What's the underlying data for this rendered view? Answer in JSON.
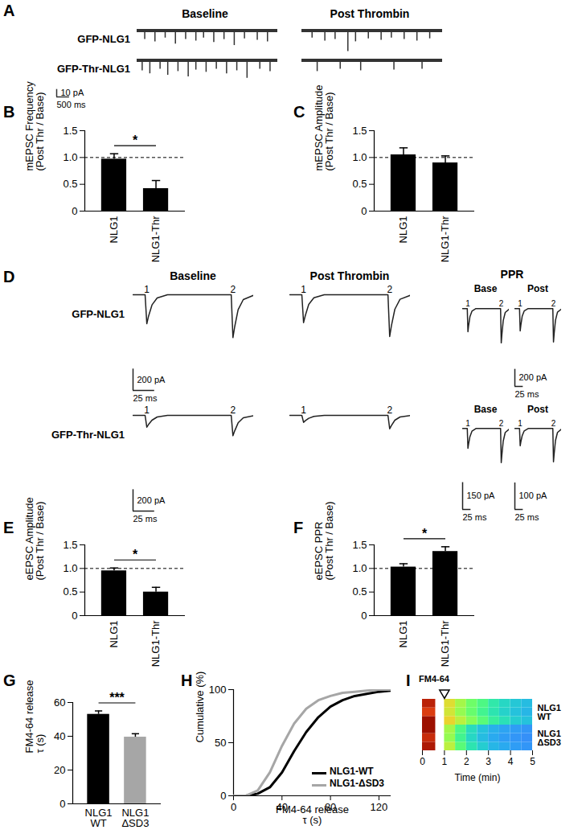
{
  "chart_data": [
    {
      "panel": "A",
      "type": "trace",
      "color": "#333333",
      "column_titles": [
        "Baseline",
        "Post Thrombin"
      ],
      "row_labels": [
        "GFP-NLG1",
        "GFP-Thr-NLG1"
      ],
      "xlim": [
        0,
        5500
      ],
      "ylim": [
        -35,
        8
      ],
      "traces": [
        [
          [
            [
              300,
              -12
            ],
            [
              700,
              -15
            ],
            [
              1100,
              -10
            ],
            [
              1500,
              -18
            ],
            [
              1900,
              -12
            ],
            [
              2300,
              -14
            ],
            [
              2600,
              -10
            ],
            [
              3000,
              -16
            ],
            [
              3400,
              -12
            ],
            [
              3800,
              -20
            ],
            [
              4200,
              -11
            ],
            [
              4700,
              -13
            ],
            [
              5100,
              -15
            ]
          ],
          [
            [
              400,
              -10
            ],
            [
              900,
              -14
            ],
            [
              1300,
              -12
            ],
            [
              1800,
              -28
            ],
            [
              2100,
              -15
            ],
            [
              2600,
              -11
            ],
            [
              3100,
              -13
            ],
            [
              3500,
              -10
            ],
            [
              4000,
              -12
            ],
            [
              4500,
              -14
            ],
            [
              5000,
              -11
            ]
          ]
        ],
        [
          [
            [
              200,
              -14
            ],
            [
              500,
              -18
            ],
            [
              900,
              -12
            ],
            [
              1200,
              -20
            ],
            [
              1600,
              -15
            ],
            [
              2000,
              -22
            ],
            [
              2300,
              -13
            ],
            [
              2700,
              -16
            ],
            [
              3100,
              -12
            ],
            [
              3500,
              -18
            ],
            [
              3900,
              -14
            ],
            [
              4300,
              -24
            ],
            [
              4800,
              -12
            ],
            [
              5200,
              -15
            ]
          ],
          [
            [
              600,
              -15
            ],
            [
              1500,
              -12
            ],
            [
              2300,
              -14
            ],
            [
              3600,
              -13
            ],
            [
              4700,
              -12
            ]
          ]
        ]
      ],
      "scale_bar": {
        "x": 500,
        "x_label": "500 ms",
        "y": 10,
        "y_label": "10 pA"
      }
    },
    {
      "panel": "B",
      "type": "bar",
      "categories": [
        "NLG1",
        "NLG1-Thr"
      ],
      "values": [
        0.97,
        0.42
      ],
      "errors": [
        0.1,
        0.15
      ],
      "color": "#000000",
      "ylabel": "mEPSC Frequency\n(Post Thr / Base)",
      "ylim": [
        0,
        1.5
      ],
      "yticks": [
        0,
        0.5,
        {
          "value": 1,
          "label": "1.0"
        },
        1.5
      ],
      "reference": 1,
      "significance": "*"
    },
    {
      "panel": "C",
      "type": "bar",
      "categories": [
        "NLG1",
        "NLG1-Thr"
      ],
      "values": [
        1.05,
        0.9
      ],
      "errors": [
        0.13,
        0.13
      ],
      "color": "#000000",
      "ylabel": "mEPSC Amplitude\n(Post Thr / Base)",
      "ylim": [
        0,
        1.5
      ],
      "yticks": [
        0,
        0.5,
        {
          "value": 1,
          "label": "1.0"
        },
        1.5
      ],
      "reference": 1
    },
    {
      "panel": "D",
      "type": "evoked_trace",
      "color": "#222222",
      "column_titles": [
        "Baseline",
        "Post Thrombin"
      ],
      "row_labels": [
        "GFP-NLG1",
        "GFP-Thr-NLG1"
      ],
      "xlim": [
        0,
        140
      ],
      "ylim": [
        -420,
        30
      ],
      "pulses": [
        {
          "label": "1",
          "t": 16
        },
        {
          "label": "2",
          "t": 116
        }
      ],
      "traces": [
        [
          [
            [
              0,
              0
            ],
            [
              14,
              0
            ],
            [
              16,
              -270
            ],
            [
              18,
              -200
            ],
            [
              22,
              -95
            ],
            [
              28,
              -30
            ],
            [
              40,
              0
            ],
            [
              114,
              0
            ],
            [
              116,
              -400
            ],
            [
              118,
              -300
            ],
            [
              122,
              -140
            ],
            [
              128,
              -45
            ],
            [
              140,
              -5
            ]
          ],
          [
            [
              0,
              0
            ],
            [
              14,
              0
            ],
            [
              16,
              -260
            ],
            [
              18,
              -195
            ],
            [
              22,
              -90
            ],
            [
              28,
              -28
            ],
            [
              40,
              0
            ],
            [
              114,
              0
            ],
            [
              116,
              -390
            ],
            [
              118,
              -290
            ],
            [
              122,
              -135
            ],
            [
              128,
              -42
            ],
            [
              140,
              -5
            ]
          ]
        ],
        [
          [
            [
              0,
              0
            ],
            [
              14,
              0
            ],
            [
              16,
              -110
            ],
            [
              18,
              -85
            ],
            [
              22,
              -45
            ],
            [
              28,
              -15
            ],
            [
              40,
              0
            ],
            [
              114,
              0
            ],
            [
              116,
              -190
            ],
            [
              118,
              -145
            ],
            [
              122,
              -70
            ],
            [
              128,
              -22
            ],
            [
              140,
              -3
            ]
          ],
          [
            [
              0,
              0
            ],
            [
              14,
              0
            ],
            [
              16,
              -65
            ],
            [
              18,
              -50
            ],
            [
              22,
              -27
            ],
            [
              28,
              -9
            ],
            [
              40,
              0
            ],
            [
              114,
              0
            ],
            [
              116,
              -125
            ],
            [
              118,
              -95
            ],
            [
              122,
              -45
            ],
            [
              128,
              -15
            ],
            [
              140,
              -2
            ]
          ]
        ]
      ],
      "scale_bars": [
        {
          "x": 25,
          "x_label": "25 ms",
          "y": 200,
          "y_label": "200 pA"
        },
        {
          "x": 25,
          "x_label": "25 ms",
          "y": 200,
          "y_label": "200 pA"
        }
      ],
      "inset": {
        "title": "PPR",
        "column_titles": [
          "Base",
          "Post"
        ],
        "rows": [
          {
            "ylims": [
              [
                -420,
                30
              ],
              [
                -420,
                30
              ]
            ],
            "scale_bars": [
              {
                "x": 25,
                "x_label": "25 ms",
                "y": 200,
                "y_label": "200 pA"
              }
            ]
          },
          {
            "ylims": [
              [
                -200,
                15
              ],
              [
                -135,
                10
              ]
            ],
            "scale_bars": [
              {
                "x": 25,
                "x_label": "25 ms",
                "y": 150,
                "y_label": "150 pA"
              },
              {
                "x": 25,
                "x_label": "25 ms",
                "y": 100,
                "y_label": "100 pA"
              }
            ]
          }
        ]
      }
    },
    {
      "panel": "E",
      "type": "bar",
      "categories": [
        "NLG1",
        "NLG1-Thr"
      ],
      "values": [
        0.95,
        0.5
      ],
      "errors": [
        0.06,
        0.1
      ],
      "color": "#000000",
      "ylabel": "eEPSC Amplitude\n(Post Thr / Base)",
      "ylim": [
        0,
        1.5
      ],
      "yticks": [
        0,
        0.5,
        {
          "value": 1,
          "label": "1.0"
        },
        1.5
      ],
      "reference": 1,
      "significance": "*"
    },
    {
      "panel": "F",
      "type": "bar",
      "categories": [
        "NLG1",
        "NLG1-Thr"
      ],
      "values": [
        1.03,
        1.36
      ],
      "errors": [
        0.07,
        0.1
      ],
      "color": "#000000",
      "ylabel": "eEPSC PPR\n(Post Thr / Base)",
      "ylim": [
        0,
        1.5
      ],
      "yticks": [
        0,
        0.5,
        {
          "value": 1,
          "label": "1.0"
        },
        1.5
      ],
      "reference": 1,
      "significance": "*"
    },
    {
      "panel": "G",
      "type": "bar",
      "categories": [
        "NLG1\nWT",
        "NLG1\nΔSD3"
      ],
      "values": [
        53,
        39.5
      ],
      "errors": [
        2,
        2
      ],
      "colors": [
        "#000000",
        "#a6a6a6"
      ],
      "ylabel": "FM4-64 release\nτ (s)",
      "ylim": [
        0,
        60
      ],
      "yticks": [
        0,
        20,
        40,
        60
      ],
      "significance": "***"
    },
    {
      "panel": "H",
      "type": "line",
      "x": [
        0,
        10,
        20,
        30,
        40,
        50,
        60,
        70,
        80,
        90,
        100,
        110,
        120,
        130
      ],
      "series": [
        {
          "name": "NLG1-WT",
          "color": "#000000",
          "values": [
            0,
            0,
            2,
            8,
            22,
            42,
            60,
            74,
            84,
            90,
            94,
            96,
            98,
            99
          ]
        },
        {
          "name": "NLG1-ΔSD3",
          "color": "#a6a6a6",
          "values": [
            0,
            0,
            5,
            22,
            47,
            68,
            82,
            90,
            94,
            97,
            98,
            99,
            100,
            100
          ]
        }
      ],
      "xlim": [
        0,
        130
      ],
      "xticks": [
        0,
        40,
        80,
        120
      ],
      "ylim": [
        0,
        100
      ],
      "yticks": [
        0,
        50,
        100
      ],
      "xlabel": "FM4-64 release\nτ (s)",
      "ylabel": "Cumulative (%)",
      "legend": "bottom-right"
    },
    {
      "panel": "I",
      "type": "heatmap",
      "title": "FM4-64",
      "stimulus": 1,
      "xlim": [
        0,
        5
      ],
      "xticks": [
        0,
        1,
        2,
        3,
        4,
        5
      ],
      "xlabel": "Time (min)",
      "zlim": [
        0,
        1
      ],
      "t_start": [
        0,
        1,
        1.5,
        2,
        2.5,
        3,
        3.5,
        4,
        4.5
      ],
      "t_end": [
        0.6,
        1.5,
        2,
        2.5,
        3,
        3.5,
        4,
        4.5,
        5
      ],
      "rows": [
        {
          "label": "NLG1\nWT",
          "cells": [
            [
              0.95,
              0.62,
              0.55,
              0.48,
              0.42,
              0.36,
              0.32,
              0.28,
              0.26
            ],
            [
              0.85,
              0.58,
              0.5,
              0.44,
              0.38,
              0.33,
              0.29,
              0.26,
              0.24
            ],
            [
              0.9,
              0.6,
              0.52,
              0.45,
              0.4,
              0.34,
              0.3,
              0.27,
              0.25
            ]
          ]
        },
        {
          "label": "NLG1\nΔSD3",
          "cells": [
            [
              0.92,
              0.55,
              0.42,
              0.33,
              0.28,
              0.24,
              0.22,
              0.2,
              0.19
            ],
            [
              0.88,
              0.5,
              0.38,
              0.3,
              0.25,
              0.22,
              0.2,
              0.19,
              0.18
            ],
            [
              0.95,
              0.52,
              0.4,
              0.31,
              0.26,
              0.23,
              0.21,
              0.2,
              0.19
            ]
          ]
        }
      ]
    }
  ]
}
